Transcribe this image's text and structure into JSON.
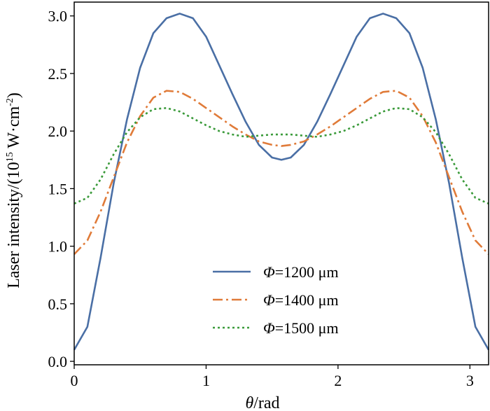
{
  "chart_data": {
    "type": "line",
    "xlabel": "θ/rad",
    "ylabel": "Laser intensity/(10¹⁵ W·cm⁻²)",
    "xlim": [
      0,
      3.1416
    ],
    "ylim": [
      -0.03,
      3.12
    ],
    "xticks": [
      0,
      1,
      2,
      3
    ],
    "xtick_labels": [
      "0",
      "1",
      "2",
      "3"
    ],
    "yticks": [
      0.0,
      0.5,
      1.0,
      1.5,
      2.0,
      2.5,
      3.0
    ],
    "ytick_labels": [
      "0.0",
      "0.5",
      "1.0",
      "1.5",
      "2.0",
      "2.5",
      "3.0"
    ],
    "grid": false,
    "legend_position": "lower-center",
    "series": [
      {
        "name": "Φ=1200 μm",
        "symbol": "Φ",
        "rest": "=1200 μm",
        "color": "#4a6fa5",
        "style": "solid",
        "x": [
          0,
          0.1,
          0.2,
          0.3,
          0.4,
          0.5,
          0.6,
          0.7,
          0.8,
          0.9,
          1.0,
          1.1,
          1.2,
          1.3,
          1.4,
          1.5,
          1.5708,
          1.6416,
          1.7416,
          1.8416,
          1.9416,
          2.0416,
          2.1416,
          2.2416,
          2.3416,
          2.4416,
          2.5416,
          2.6416,
          2.7416,
          2.8416,
          2.9416,
          3.0416,
          3.1416
        ],
        "y": [
          0.1,
          0.3,
          0.9,
          1.55,
          2.1,
          2.55,
          2.85,
          2.98,
          3.02,
          2.98,
          2.82,
          2.57,
          2.32,
          2.08,
          1.88,
          1.77,
          1.75,
          1.77,
          1.88,
          2.08,
          2.32,
          2.57,
          2.82,
          2.98,
          3.02,
          2.98,
          2.85,
          2.55,
          2.1,
          1.55,
          0.9,
          0.3,
          0.1
        ]
      },
      {
        "name": "Φ=1400 μm",
        "symbol": "Φ",
        "rest": "=1400 μm",
        "color": "#e07b39",
        "style": "dashdot",
        "x": [
          0,
          0.1,
          0.2,
          0.3,
          0.4,
          0.5,
          0.6,
          0.7,
          0.8,
          0.9,
          1.0,
          1.1,
          1.2,
          1.3,
          1.4,
          1.5,
          1.5708,
          1.6416,
          1.7416,
          1.8416,
          1.9416,
          2.0416,
          2.1416,
          2.2416,
          2.3416,
          2.4416,
          2.5416,
          2.6416,
          2.7416,
          2.8416,
          2.9416,
          3.0416,
          3.1416
        ],
        "y": [
          0.93,
          1.05,
          1.3,
          1.6,
          1.9,
          2.13,
          2.29,
          2.35,
          2.34,
          2.28,
          2.2,
          2.12,
          2.04,
          1.97,
          1.91,
          1.88,
          1.87,
          1.88,
          1.91,
          1.97,
          2.04,
          2.12,
          2.2,
          2.28,
          2.34,
          2.35,
          2.29,
          2.13,
          1.9,
          1.6,
          1.3,
          1.05,
          0.93
        ]
      },
      {
        "name": "Φ=1500 μm",
        "symbol": "Φ",
        "rest": "=1500 μm",
        "color": "#3a9a3a",
        "style": "dotted",
        "x": [
          0,
          0.1,
          0.2,
          0.3,
          0.4,
          0.5,
          0.6,
          0.7,
          0.8,
          0.9,
          1.0,
          1.1,
          1.2,
          1.3,
          1.4,
          1.5,
          1.5708,
          1.6416,
          1.7416,
          1.8416,
          1.9416,
          2.0416,
          2.1416,
          2.2416,
          2.3416,
          2.4416,
          2.5416,
          2.6416,
          2.7416,
          2.8416,
          2.9416,
          3.0416,
          3.1416
        ],
        "y": [
          1.37,
          1.42,
          1.58,
          1.8,
          1.99,
          2.12,
          2.19,
          2.2,
          2.17,
          2.11,
          2.05,
          2.0,
          1.97,
          1.95,
          1.96,
          1.97,
          1.97,
          1.97,
          1.96,
          1.95,
          1.97,
          2.0,
          2.05,
          2.11,
          2.17,
          2.2,
          2.19,
          2.12,
          1.99,
          1.8,
          1.58,
          1.42,
          1.37
        ]
      }
    ]
  }
}
